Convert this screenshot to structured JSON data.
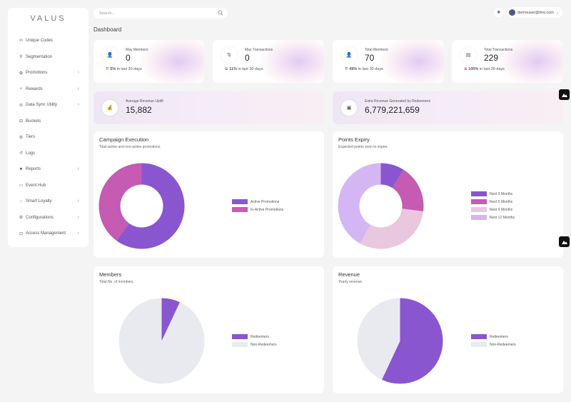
{
  "brand": "VALUS",
  "sidebar": {
    "items": [
      {
        "label": "Unique Codes",
        "icon": "code-icon",
        "chevron": false
      },
      {
        "label": "Segmentation",
        "icon": "segment-icon",
        "chevron": false
      },
      {
        "label": "Promotions",
        "icon": "promotion-icon",
        "chevron": true
      },
      {
        "label": "Rewards",
        "icon": "reward-icon",
        "chevron": true
      },
      {
        "label": "Data Sync Utility",
        "icon": "sync-icon",
        "chevron": true
      },
      {
        "label": "Buckets",
        "icon": "bucket-icon",
        "chevron": false
      },
      {
        "label": "Tiers",
        "icon": "tier-icon",
        "chevron": false
      },
      {
        "label": "Logs",
        "icon": "log-icon",
        "chevron": false
      },
      {
        "label": "Reports",
        "icon": "report-icon",
        "chevron": true
      },
      {
        "label": "Event Hub",
        "icon": "event-icon",
        "chevron": false
      },
      {
        "label": "Smart Loyalty",
        "icon": "loyalty-icon",
        "chevron": true
      },
      {
        "label": "Configurations",
        "icon": "config-icon",
        "chevron": true
      },
      {
        "label": "Access Management",
        "icon": "lock-icon",
        "chevron": true
      }
    ]
  },
  "search": {
    "placeholder": "Search..."
  },
  "header": {
    "user_email": "demouser@lms.com"
  },
  "page": {
    "title": "Dashboard"
  },
  "stats": [
    {
      "label": "May Members",
      "value": "0",
      "change": "5%",
      "direction": "up",
      "period": "in last 30 days"
    },
    {
      "label": "May Transactions",
      "value": "0",
      "change": "11%",
      "direction": "down",
      "period": "in last 30 days"
    },
    {
      "label": "Total Members",
      "value": "70",
      "change": "49%",
      "direction": "up",
      "period": "in last 30 days"
    },
    {
      "label": "Total Transactions",
      "value": "229",
      "change": "100%",
      "direction": "down",
      "period": "in last 30 days"
    }
  ],
  "wide_stats": [
    {
      "label": "Average Revenue Uplift",
      "value": "15,882"
    },
    {
      "label": "Extra Revenue Generated by Redeemers",
      "value": "6,779,221,659"
    }
  ],
  "panels": {
    "campaign": {
      "title": "Campaign Execution",
      "subtitle": "Total active and non-active promotions."
    },
    "points": {
      "title": "Points Expiry",
      "subtitle": "Expected points soon to expire."
    },
    "members": {
      "title": "Members",
      "subtitle": "Total No. of members."
    },
    "revenue": {
      "title": "Revenue",
      "subtitle": "Yearly revenue"
    }
  },
  "colors": {
    "accent": "#8a56cf",
    "magenta": "#c55bb3",
    "pink_light": "#e8c7df",
    "lavender": "#d4b6f5",
    "grey_slice": "#e8eaf0"
  },
  "chart_data": [
    {
      "type": "pie",
      "variant": "donut",
      "id": "campaign",
      "labels": [
        "Active Promotions",
        "In-Active Promotions"
      ],
      "values": [
        60,
        40
      ],
      "colors": [
        "#8a56cf",
        "#c55bb3"
      ]
    },
    {
      "type": "pie",
      "variant": "donut",
      "id": "points",
      "labels": [
        "Next 3 Months",
        "Next 6 Months",
        "Next 9 Months",
        "Next 12 Months"
      ],
      "values": [
        9,
        18,
        31,
        42
      ],
      "colors": [
        "#8a56cf",
        "#c55bb3",
        "#e8c7df",
        "#d4b6f5"
      ]
    },
    {
      "type": "pie",
      "id": "members",
      "labels": [
        "Redeemers",
        "Non-Redeemers"
      ],
      "values": [
        7,
        93
      ],
      "colors": [
        "#8a56cf",
        "#e8eaf0"
      ]
    },
    {
      "type": "pie",
      "id": "revenue",
      "labels": [
        "Redeemers",
        "Non-Redeemers"
      ],
      "values": [
        57,
        43
      ],
      "colors": [
        "#8a56cf",
        "#e8eaf0"
      ]
    }
  ]
}
